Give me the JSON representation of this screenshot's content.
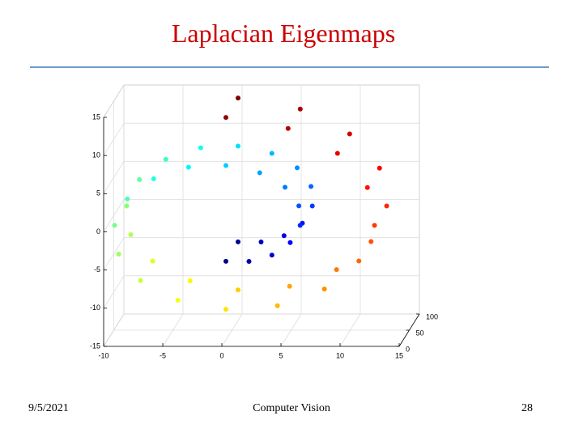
{
  "slide": {
    "title": "Laplacian Eigenmaps",
    "date": "9/5/2021",
    "footer": "Computer Vision",
    "page": "28"
  },
  "chart_data": {
    "type": "scatter3d",
    "colormap": "jet",
    "x": [
      0,
      0,
      1.95,
      1.95,
      3.89,
      3.89,
      5.44,
      5.44,
      6.28,
      6.28,
      6.17,
      6.17,
      5.0,
      5.0,
      2.86,
      2.86,
      0,
      0,
      -3.16,
      -3.16,
      -6.11,
      -6.11,
      -8.34,
      -8.34,
      -9.42,
      -9.42,
      -9.07,
      -9.07,
      -7.22,
      -7.22,
      -4.06,
      -4.06,
      0,
      0,
      4.36,
      4.36,
      8.33,
      8.33,
      11.25,
      11.25,
      12.57,
      12.57,
      11.97,
      11.97,
      9.44,
      9.44,
      5.26,
      5.26,
      0,
      0
    ],
    "y": [
      20,
      80,
      20,
      80,
      20,
      80,
      20,
      80,
      20,
      80,
      20,
      80,
      20,
      80,
      20,
      80,
      20,
      80,
      20,
      80,
      20,
      80,
      20,
      80,
      20,
      80,
      20,
      80,
      20,
      80,
      20,
      80,
      20,
      80,
      20,
      80,
      20,
      80,
      20,
      80,
      20,
      80,
      20,
      80,
      20,
      80,
      20,
      80,
      20,
      80
    ],
    "z": [
      -4.71,
      -4.71,
      -4.72,
      -4.72,
      -3.89,
      -3.89,
      -2.25,
      -2.25,
      0,
      0,
      2.56,
      2.56,
      5.0,
      5.0,
      6.89,
      6.89,
      7.85,
      7.85,
      7.62,
      7.62,
      6.11,
      6.11,
      3.46,
      3.46,
      0,
      0,
      -3.76,
      -3.76,
      -7.22,
      -7.22,
      -9.8,
      -9.8,
      -11.0,
      -11.0,
      -10.52,
      -10.52,
      -8.33,
      -8.33,
      -4.66,
      -4.66,
      0,
      0,
      4.96,
      4.96,
      9.44,
      9.44,
      12.7,
      12.7,
      14.14,
      14.14
    ],
    "xlim": [
      -10,
      15
    ],
    "xticks": [
      -10,
      -5,
      0,
      5,
      10,
      15
    ],
    "ylim": [
      0,
      100
    ],
    "yticks": [
      0,
      50,
      100
    ],
    "zlim": [
      -15,
      15
    ],
    "zticks": [
      -15,
      -10,
      -5,
      0,
      5,
      10,
      15
    ],
    "grid": true
  }
}
